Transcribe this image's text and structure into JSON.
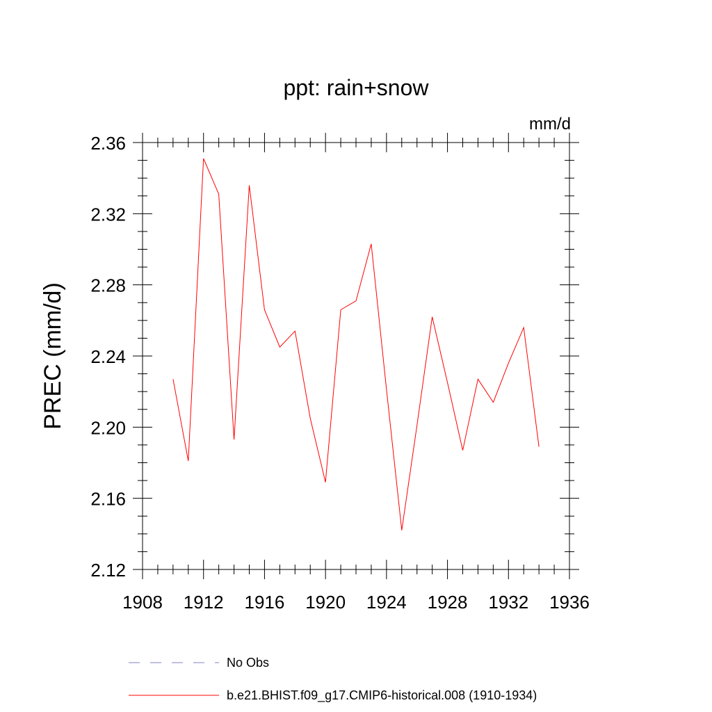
{
  "chart_data": {
    "type": "line",
    "title": "ppt: rain+snow",
    "units_label": "mm/d",
    "ylabel": "PREC  (mm/d)",
    "xlabel": "",
    "xlim": [
      1908,
      1936
    ],
    "ylim": [
      2.12,
      2.36
    ],
    "x_ticks": [
      "1908",
      "1912",
      "1916",
      "1920",
      "1924",
      "1928",
      "1932",
      "1936"
    ],
    "y_ticks": [
      "2.12",
      "2.16",
      "2.20",
      "2.24",
      "2.28",
      "2.32",
      "2.36"
    ],
    "series": [
      {
        "name": "b.e21.BHIST.f09_g17.CMIP6-historical.008 (1910-1934)",
        "color": "#ff0000",
        "style": "solid",
        "x": [
          1910,
          1911,
          1912,
          1913,
          1914,
          1915,
          1916,
          1917,
          1918,
          1919,
          1920,
          1921,
          1922,
          1923,
          1924,
          1925,
          1926,
          1927,
          1928,
          1929,
          1930,
          1931,
          1932,
          1933,
          1934
        ],
        "y": [
          2.227,
          2.181,
          2.351,
          2.331,
          2.193,
          2.336,
          2.266,
          2.245,
          2.254,
          2.205,
          2.169,
          2.266,
          2.271,
          2.303,
          2.221,
          2.142,
          2.201,
          2.262,
          2.225,
          2.187,
          2.227,
          2.214,
          2.236,
          2.256,
          2.189
        ]
      }
    ],
    "legend": [
      {
        "label": "No Obs",
        "color": "#8080c0",
        "style": "dashed"
      },
      {
        "label": "b.e21.BHIST.f09_g17.CMIP6-historical.008 (1910-1934)",
        "color": "#ff0000",
        "style": "solid"
      }
    ],
    "legend_position": "bottom",
    "grid": false
  }
}
